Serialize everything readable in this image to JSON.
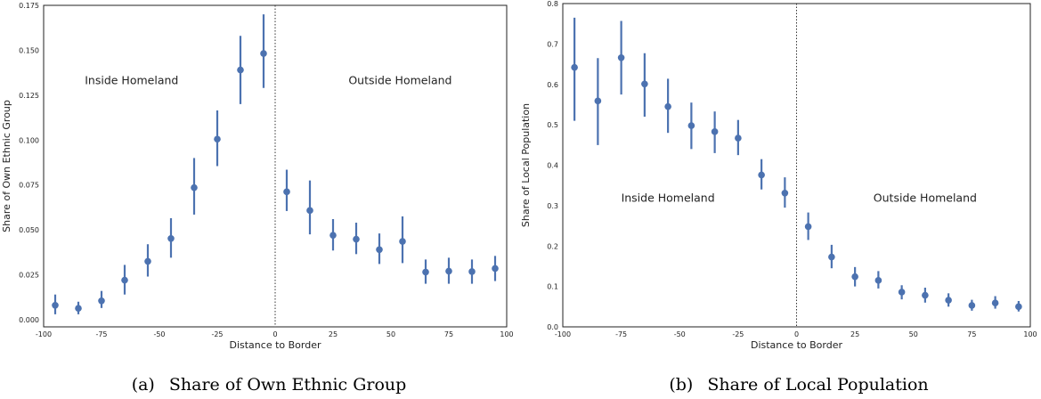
{
  "chart_data": [
    {
      "type": "scatter",
      "subplot_label": "(a)",
      "caption": "Share of Own Ethnic Group",
      "xlabel": "Distance to Border",
      "ylabel": "Share of Own Ethnic Group",
      "xlim": [
        -100,
        100
      ],
      "ylim": [
        -0.004,
        0.175
      ],
      "xticks": [
        "-100",
        "-75",
        "-50",
        "-25",
        "0",
        "25",
        "50",
        "75",
        "100"
      ],
      "yticks": [
        "0.000",
        "0.025",
        "0.050",
        "0.075",
        "0.100",
        "0.125",
        "0.150",
        "0.175"
      ],
      "cutoff_x": 0,
      "annotations": [
        {
          "text": "Inside Homeland",
          "x": -62,
          "y": 0.131
        },
        {
          "text": "Outside Homeland",
          "x": 54,
          "y": 0.131
        }
      ],
      "series": [
        {
          "x": [
            -95,
            -85,
            -75,
            -65,
            -55,
            -45,
            -35,
            -25,
            -15,
            -5,
            5,
            15,
            25,
            35,
            45,
            55,
            65,
            75,
            85,
            95
          ],
          "y": [
            0.008,
            0.0063,
            0.0105,
            0.022,
            0.0325,
            0.0452,
            0.0735,
            0.1005,
            0.139,
            0.1482,
            0.0712,
            0.0608,
            0.047,
            0.0448,
            0.039,
            0.0436,
            0.0265,
            0.027,
            0.0268,
            0.0285
          ],
          "ci_low": [
            0.003,
            0.003,
            0.0065,
            0.014,
            0.024,
            0.0345,
            0.0585,
            0.0855,
            0.12,
            0.129,
            0.0605,
            0.0475,
            0.0385,
            0.0365,
            0.031,
            0.0315,
            0.02,
            0.02,
            0.02,
            0.0215
          ],
          "ci_high": [
            0.014,
            0.01,
            0.016,
            0.0305,
            0.042,
            0.0565,
            0.09,
            0.1165,
            0.158,
            0.17,
            0.0835,
            0.0775,
            0.056,
            0.054,
            0.048,
            0.0575,
            0.0335,
            0.0345,
            0.0335,
            0.0355
          ]
        }
      ]
    },
    {
      "type": "scatter",
      "subplot_label": "(b)",
      "caption": "Share of Local Population",
      "xlabel": "Distance to Border",
      "ylabel": "Share of Local Population",
      "xlim": [
        -100,
        100
      ],
      "ylim": [
        0.0,
        0.8
      ],
      "xticks": [
        "-100",
        "-75",
        "-50",
        "-25",
        "0",
        "25",
        "50",
        "75",
        "100"
      ],
      "yticks": [
        "0.0",
        "0.1",
        "0.2",
        "0.3",
        "0.4",
        "0.5",
        "0.6",
        "0.7",
        "0.8"
      ],
      "cutoff_x": 0,
      "annotations": [
        {
          "text": "Inside Homeland",
          "x": -55,
          "y": 0.31
        },
        {
          "text": "Outside Homeland",
          "x": 55,
          "y": 0.31
        }
      ],
      "series": [
        {
          "x": [
            -95,
            -85,
            -75,
            -65,
            -55,
            -45,
            -35,
            -25,
            -15,
            -5,
            5,
            15,
            25,
            35,
            45,
            55,
            65,
            75,
            85,
            95
          ],
          "y": [
            0.642,
            0.559,
            0.666,
            0.601,
            0.545,
            0.498,
            0.483,
            0.467,
            0.376,
            0.331,
            0.248,
            0.173,
            0.124,
            0.115,
            0.086,
            0.078,
            0.066,
            0.053,
            0.059,
            0.05
          ],
          "ci_low": [
            0.51,
            0.45,
            0.575,
            0.52,
            0.48,
            0.44,
            0.43,
            0.425,
            0.34,
            0.295,
            0.215,
            0.145,
            0.1,
            0.095,
            0.068,
            0.06,
            0.05,
            0.04,
            0.045,
            0.038
          ],
          "ci_high": [
            0.765,
            0.665,
            0.757,
            0.677,
            0.614,
            0.555,
            0.533,
            0.512,
            0.415,
            0.37,
            0.283,
            0.203,
            0.148,
            0.138,
            0.103,
            0.097,
            0.083,
            0.067,
            0.076,
            0.064
          ]
        }
      ]
    }
  ],
  "style": {
    "marker_color": "#4c72b0",
    "errorbar_color": "#4c72b0",
    "axis_color": "#222222",
    "cutoff_line_color": "#333333"
  }
}
